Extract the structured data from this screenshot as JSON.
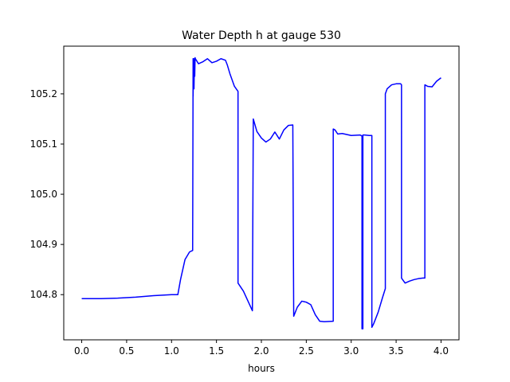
{
  "chart_data": {
    "type": "line",
    "title": "Water Depth h at gauge 530",
    "xlabel": "hours",
    "ylabel": "",
    "xlim": [
      -0.2,
      4.2
    ],
    "ylim": [
      104.71,
      105.295
    ],
    "xticks": [
      0.0,
      0.5,
      1.0,
      1.5,
      2.0,
      2.5,
      3.0,
      3.5,
      4.0
    ],
    "xtick_labels": [
      "0.0",
      "0.5",
      "1.0",
      "1.5",
      "2.0",
      "2.5",
      "3.0",
      "3.5",
      "4.0"
    ],
    "yticks": [
      104.8,
      104.9,
      105.0,
      105.1,
      105.2
    ],
    "ytick_labels": [
      "104.8",
      "104.9",
      "105.0",
      "105.1",
      "105.2"
    ],
    "grid": false,
    "legend": "none",
    "line_color": "#0000ff",
    "series": [
      {
        "x": [
          0.0,
          0.2,
          0.4,
          0.6,
          0.8,
          1.0,
          1.07,
          1.1,
          1.15,
          1.2,
          1.235,
          1.24,
          1.24,
          1.245,
          1.25,
          1.255,
          1.258,
          1.262,
          1.265,
          1.3,
          1.35,
          1.4,
          1.45,
          1.5,
          1.55,
          1.6,
          1.62,
          1.65,
          1.7,
          1.74,
          1.74,
          1.8,
          1.9,
          1.91,
          1.91,
          1.95,
          2.0,
          2.05,
          2.1,
          2.15,
          2.2,
          2.25,
          2.3,
          2.35,
          2.36,
          2.36,
          2.4,
          2.45,
          2.5,
          2.55,
          2.6,
          2.65,
          2.7,
          2.8,
          2.8,
          2.82,
          2.85,
          2.9,
          3.0,
          3.1,
          3.12,
          3.12,
          3.13,
          3.13,
          3.15,
          3.2,
          3.23,
          3.23,
          3.25,
          3.3,
          3.35,
          3.38,
          3.38,
          3.4,
          3.45,
          3.5,
          3.55,
          3.56,
          3.56,
          3.6,
          3.65,
          3.7,
          3.75,
          3.8,
          3.82,
          3.82,
          3.85,
          3.9,
          3.95,
          4.0
        ],
        "y": [
          104.792,
          104.792,
          104.793,
          104.795,
          104.798,
          104.8,
          104.8,
          104.83,
          104.87,
          104.885,
          104.888,
          105.27,
          105.195,
          105.27,
          105.21,
          105.27,
          105.235,
          105.272,
          105.27,
          105.26,
          105.264,
          105.27,
          105.262,
          105.265,
          105.27,
          105.267,
          105.258,
          105.24,
          105.215,
          105.205,
          104.823,
          104.807,
          104.768,
          105.15,
          105.15,
          105.125,
          105.112,
          105.104,
          105.11,
          105.124,
          105.11,
          105.128,
          105.137,
          105.138,
          104.757,
          104.757,
          104.775,
          104.787,
          104.785,
          104.78,
          104.76,
          104.747,
          104.746,
          104.747,
          105.13,
          105.128,
          105.12,
          105.121,
          105.117,
          105.118,
          105.116,
          104.732,
          104.732,
          105.118,
          105.118,
          105.117,
          105.117,
          104.735,
          104.742,
          104.765,
          104.795,
          104.812,
          105.2,
          105.21,
          105.218,
          105.22,
          105.22,
          105.218,
          104.833,
          104.823,
          104.827,
          104.83,
          104.832,
          104.833,
          104.833,
          105.218,
          105.215,
          105.214,
          105.225,
          105.232
        ]
      }
    ]
  }
}
